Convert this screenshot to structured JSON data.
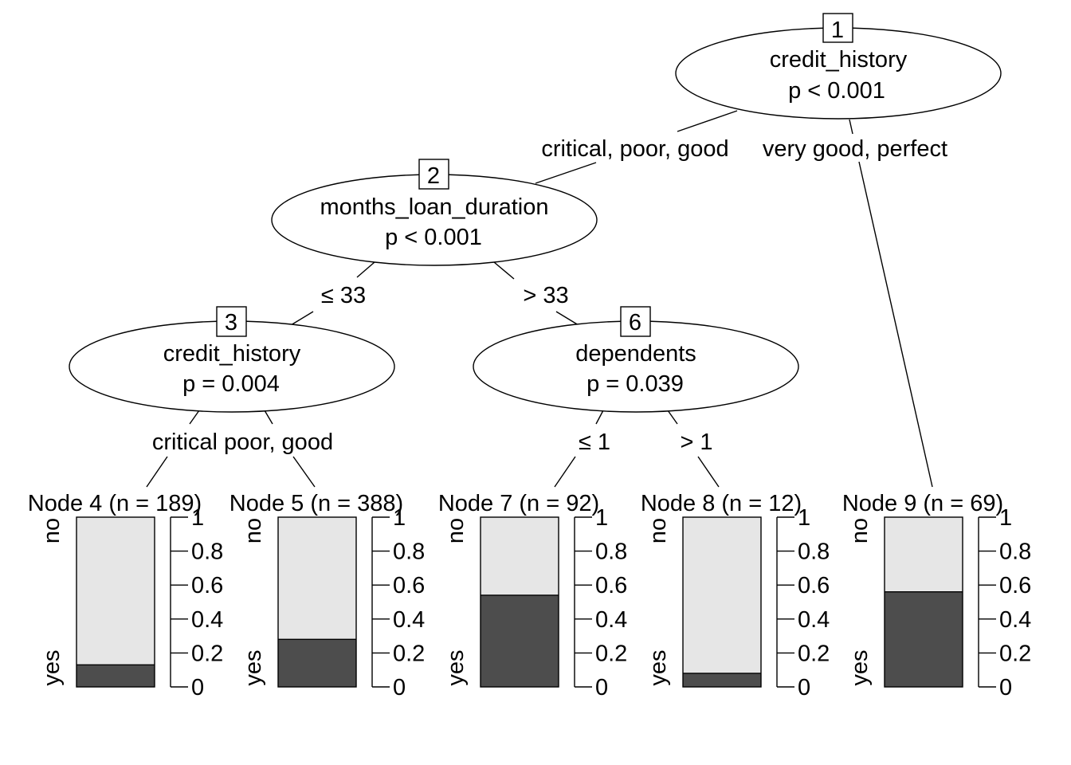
{
  "tree": {
    "inner_nodes": [
      {
        "id": "1",
        "variable": "credit_history",
        "p_label": "p < 0.001"
      },
      {
        "id": "2",
        "variable": "months_loan_duration",
        "p_label": "p < 0.001"
      },
      {
        "id": "3",
        "variable": "credit_history",
        "p_label": "p = 0.004"
      },
      {
        "id": "6",
        "variable": "dependents",
        "p_label": "p = 0.039"
      }
    ],
    "edge_labels": [
      {
        "from": "1",
        "to": "2",
        "label": "critical, poor, good"
      },
      {
        "from": "1",
        "to": "9",
        "label": "very good, perfect"
      },
      {
        "from": "2",
        "to": "3",
        "label": "≤ 33"
      },
      {
        "from": "2",
        "to": "6",
        "label": "> 33"
      },
      {
        "from": "3",
        "to": "4",
        "label": "critical"
      },
      {
        "from": "3",
        "to": "5",
        "label": "poor, good"
      },
      {
        "from": "6",
        "to": "7",
        "label": "≤ 1"
      },
      {
        "from": "6",
        "to": "8",
        "label": "> 1"
      }
    ]
  },
  "chart_data": {
    "type": "bar",
    "stacked": true,
    "categories": [
      "Node 4 (n = 189)",
      "Node 5 (n = 388)",
      "Node 7 (n = 92)",
      "Node 8 (n = 12)",
      "Node 9 (n = 69)"
    ],
    "series": [
      {
        "name": "yes",
        "values": [
          0.13,
          0.28,
          0.54,
          0.08,
          0.56
        ]
      },
      {
        "name": "no",
        "values": [
          0.87,
          0.72,
          0.46,
          0.92,
          0.44
        ]
      }
    ],
    "ylim": [
      0,
      1
    ],
    "yticks": [
      "0",
      "0.2",
      "0.4",
      "0.6",
      "0.8",
      "1"
    ],
    "class_labels": {
      "top": "no",
      "bottom": "yes"
    },
    "colors": {
      "yes": "#4d4d4d",
      "no": "#e6e6e6"
    }
  }
}
